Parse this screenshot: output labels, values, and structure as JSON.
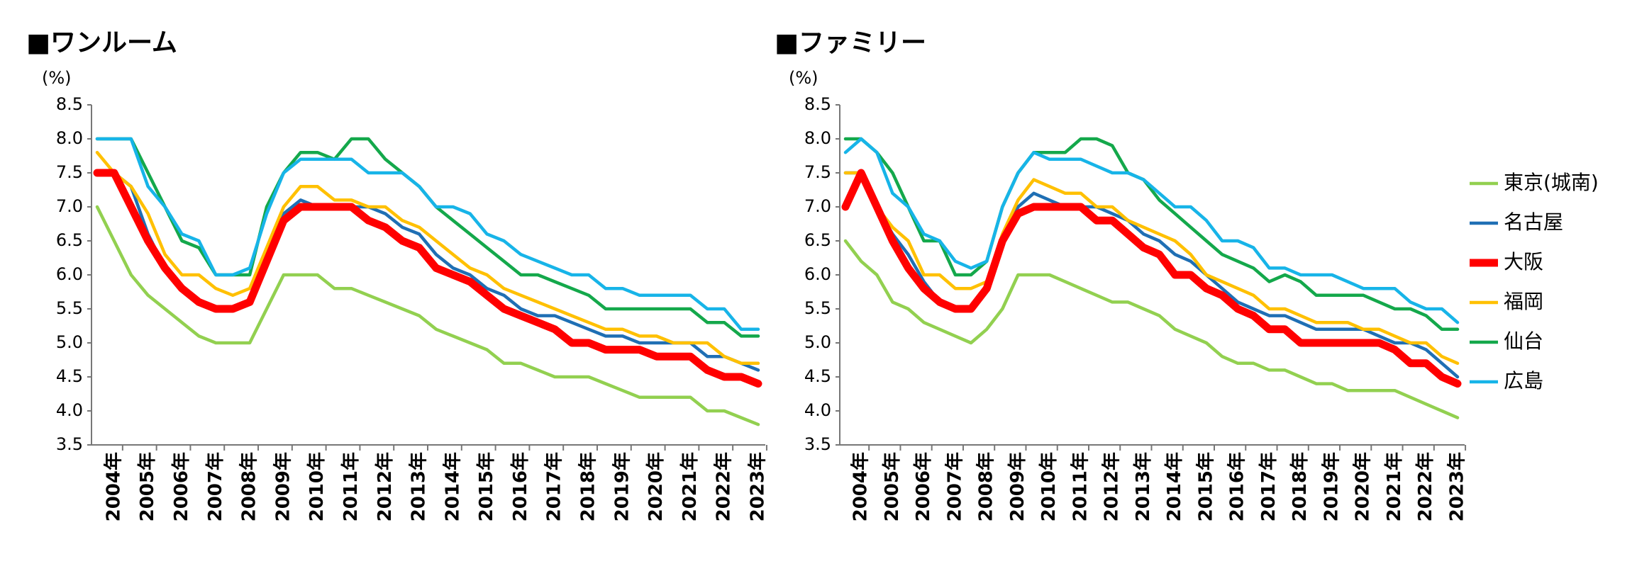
{
  "chart_data": [
    {
      "type": "line",
      "title": "■ワンルーム",
      "y_unit": "(%)",
      "categories": [
        null,
        "2004年",
        null,
        "2005年",
        null,
        "2006年",
        null,
        "2007年",
        null,
        "2008年",
        null,
        "2009年",
        null,
        "2010年",
        null,
        "2011年",
        null,
        "2012年",
        null,
        "2013年",
        null,
        "2014年",
        null,
        "2015年",
        null,
        "2016年",
        null,
        "2017年",
        null,
        "2018年",
        null,
        "2019年",
        null,
        "2020年",
        null,
        "2021年",
        null,
        "2022年",
        null,
        "2023年"
      ],
      "ylim": [
        3.5,
        8.5
      ],
      "yticks": [
        {
          "value": 3.5,
          "label": "3.5"
        },
        {
          "value": 4,
          "label": "4.0"
        },
        {
          "value": 4.5,
          "label": "4.5"
        },
        {
          "value": 5,
          "label": "5.0"
        },
        {
          "value": 5.5,
          "label": "5.5"
        },
        {
          "value": 6,
          "label": "6.0"
        },
        {
          "value": 6.5,
          "label": "6.5"
        },
        {
          "value": 7,
          "label": "7.0"
        },
        {
          "value": 7.5,
          "label": "7.5"
        },
        {
          "value": 8,
          "label": "8.0"
        },
        {
          "value": 8.5,
          "label": "8.5"
        }
      ],
      "grid": false,
      "legend": false,
      "series": [
        {
          "color": "#92d050",
          "values": [
            7.0,
            6.5,
            6.0,
            5.7,
            5.5,
            5.3,
            5.1,
            5.0,
            5.0,
            5.0,
            5.5,
            6.0,
            6.0,
            6.0,
            5.8,
            5.8,
            5.7,
            5.6,
            5.5,
            5.4,
            5.2,
            5.1,
            5.0,
            4.9,
            4.7,
            4.7,
            4.6,
            4.5,
            4.5,
            4.5,
            4.4,
            4.3,
            4.2,
            4.2,
            4.2,
            4.2,
            4.0,
            4.0,
            3.9,
            3.8
          ]
        },
        {
          "color": "#1f6fb4",
          "values": [
            7.5,
            7.5,
            7.3,
            6.6,
            6.1,
            5.8,
            5.6,
            5.5,
            5.5,
            5.6,
            6.3,
            6.9,
            7.1,
            7.0,
            7.0,
            7.0,
            7.0,
            6.9,
            6.7,
            6.6,
            6.3,
            6.1,
            6.0,
            5.8,
            5.7,
            5.5,
            5.4,
            5.4,
            5.3,
            5.2,
            5.1,
            5.1,
            5.0,
            5.0,
            5.0,
            5.0,
            4.8,
            4.8,
            4.7,
            4.6
          ]
        },
        {
          "color": "#ff0000",
          "highlight": true,
          "values": [
            7.5,
            7.5,
            7.0,
            6.5,
            6.1,
            5.8,
            5.6,
            5.5,
            5.5,
            5.6,
            6.2,
            6.8,
            7.0,
            7.0,
            7.0,
            7.0,
            6.8,
            6.7,
            6.5,
            6.4,
            6.1,
            6.0,
            5.9,
            5.7,
            5.5,
            5.4,
            5.3,
            5.2,
            5.0,
            5.0,
            4.9,
            4.9,
            4.9,
            4.8,
            4.8,
            4.8,
            4.6,
            4.5,
            4.5,
            4.4
          ]
        },
        {
          "color": "#ffc000",
          "values": [
            7.8,
            7.5,
            7.3,
            6.9,
            6.3,
            6.0,
            6.0,
            5.8,
            5.7,
            5.8,
            6.4,
            7.0,
            7.3,
            7.3,
            7.1,
            7.1,
            7.0,
            7.0,
            6.8,
            6.7,
            6.5,
            6.3,
            6.1,
            6.0,
            5.8,
            5.7,
            5.6,
            5.5,
            5.4,
            5.3,
            5.2,
            5.2,
            5.1,
            5.1,
            5.0,
            5.0,
            5.0,
            4.8,
            4.7,
            4.7
          ]
        },
        {
          "color": "#14a84b",
          "values": [
            8.0,
            8.0,
            8.0,
            7.5,
            7.0,
            6.5,
            6.4,
            6.0,
            6.0,
            6.0,
            7.0,
            7.5,
            7.8,
            7.8,
            7.7,
            8.0,
            8.0,
            7.7,
            7.5,
            7.3,
            7.0,
            6.8,
            6.6,
            6.4,
            6.2,
            6.0,
            6.0,
            5.9,
            5.8,
            5.7,
            5.5,
            5.5,
            5.5,
            5.5,
            5.5,
            5.5,
            5.3,
            5.3,
            5.1,
            5.1
          ]
        },
        {
          "color": "#17b4e8",
          "values": [
            8.0,
            8.0,
            8.0,
            7.3,
            7.0,
            6.6,
            6.5,
            6.0,
            6.0,
            6.1,
            6.9,
            7.5,
            7.7,
            7.7,
            7.7,
            7.7,
            7.5,
            7.5,
            7.5,
            7.3,
            7.0,
            7.0,
            6.9,
            6.6,
            6.5,
            6.3,
            6.2,
            6.1,
            6.0,
            6.0,
            5.8,
            5.8,
            5.7,
            5.7,
            5.7,
            5.7,
            5.5,
            5.5,
            5.2,
            5.2
          ]
        }
      ]
    },
    {
      "type": "line",
      "title": "■ファミリー",
      "y_unit": "(%)",
      "categories": [
        null,
        "2004年",
        null,
        "2005年",
        null,
        "2006年",
        null,
        "2007年",
        null,
        "2008年",
        null,
        "2009年",
        null,
        "2010年",
        null,
        "2011年",
        null,
        "2012年",
        null,
        "2013年",
        null,
        "2014年",
        null,
        "2015年",
        null,
        "2016年",
        null,
        "2017年",
        null,
        "2018年",
        null,
        "2019年",
        null,
        "2020年",
        null,
        "2021年",
        null,
        "2022年",
        null,
        "2023年"
      ],
      "ylim": [
        3.5,
        8.5
      ],
      "yticks": [
        {
          "value": 3.5,
          "label": "3.5"
        },
        {
          "value": 4,
          "label": "4.0"
        },
        {
          "value": 4.5,
          "label": "4.5"
        },
        {
          "value": 5,
          "label": "5.0"
        },
        {
          "value": 5.5,
          "label": "5.5"
        },
        {
          "value": 6,
          "label": "6.0"
        },
        {
          "value": 6.5,
          "label": "6.5"
        },
        {
          "value": 7,
          "label": "7.0"
        },
        {
          "value": 7.5,
          "label": "7.5"
        },
        {
          "value": 8,
          "label": "8.0"
        },
        {
          "value": 8.5,
          "label": "8.5"
        }
      ],
      "grid": false,
      "legend": true,
      "series": [
        {
          "name": "東京(城南)",
          "color": "#92d050",
          "values": [
            6.5,
            6.2,
            6.0,
            5.6,
            5.5,
            5.3,
            5.2,
            5.1,
            5.0,
            5.2,
            5.5,
            6.0,
            6.0,
            6.0,
            5.9,
            5.8,
            5.7,
            5.6,
            5.6,
            5.5,
            5.4,
            5.2,
            5.1,
            5.0,
            4.8,
            4.7,
            4.7,
            4.6,
            4.6,
            4.5,
            4.4,
            4.4,
            4.3,
            4.3,
            4.3,
            4.3,
            4.2,
            4.1,
            4.0,
            3.9
          ]
        },
        {
          "name": "名古屋",
          "color": "#1f6fb4",
          "values": [
            7.5,
            7.5,
            7.0,
            6.6,
            6.3,
            5.9,
            5.6,
            5.5,
            5.5,
            5.8,
            6.5,
            7.0,
            7.2,
            7.1,
            7.0,
            7.0,
            7.0,
            6.9,
            6.8,
            6.6,
            6.5,
            6.3,
            6.2,
            6.0,
            5.8,
            5.6,
            5.5,
            5.4,
            5.4,
            5.3,
            5.2,
            5.2,
            5.2,
            5.2,
            5.1,
            5.0,
            5.0,
            4.9,
            4.7,
            4.5
          ]
        },
        {
          "name": "大阪",
          "color": "#ff0000",
          "highlight": true,
          "values": [
            7.0,
            7.5,
            7.0,
            6.5,
            6.1,
            5.8,
            5.6,
            5.5,
            5.5,
            5.8,
            6.5,
            6.9,
            7.0,
            7.0,
            7.0,
            7.0,
            6.8,
            6.8,
            6.6,
            6.4,
            6.3,
            6.0,
            6.0,
            5.8,
            5.7,
            5.5,
            5.4,
            5.2,
            5.2,
            5.0,
            5.0,
            5.0,
            5.0,
            5.0,
            5.0,
            4.9,
            4.7,
            4.7,
            4.5,
            4.4
          ]
        },
        {
          "name": "福岡",
          "color": "#ffc000",
          "values": [
            7.5,
            7.5,
            7.0,
            6.7,
            6.5,
            6.0,
            6.0,
            5.8,
            5.8,
            5.9,
            6.6,
            7.1,
            7.4,
            7.3,
            7.2,
            7.2,
            7.0,
            7.0,
            6.8,
            6.7,
            6.6,
            6.5,
            6.3,
            6.0,
            5.9,
            5.8,
            5.7,
            5.5,
            5.5,
            5.4,
            5.3,
            5.3,
            5.3,
            5.2,
            5.2,
            5.1,
            5.0,
            5.0,
            4.8,
            4.7
          ]
        },
        {
          "name": "仙台",
          "color": "#14a84b",
          "values": [
            8.0,
            8.0,
            7.8,
            7.5,
            7.0,
            6.5,
            6.5,
            6.0,
            6.0,
            6.2,
            7.0,
            7.5,
            7.8,
            7.8,
            7.8,
            8.0,
            8.0,
            7.9,
            7.5,
            7.4,
            7.1,
            6.9,
            6.7,
            6.5,
            6.3,
            6.2,
            6.1,
            5.9,
            6.0,
            5.9,
            5.7,
            5.7,
            5.7,
            5.7,
            5.6,
            5.5,
            5.5,
            5.4,
            5.2,
            5.2
          ]
        },
        {
          "name": "広島",
          "color": "#17b4e8",
          "values": [
            7.8,
            8.0,
            7.8,
            7.2,
            7.0,
            6.6,
            6.5,
            6.2,
            6.1,
            6.2,
            7.0,
            7.5,
            7.8,
            7.7,
            7.7,
            7.7,
            7.6,
            7.5,
            7.5,
            7.4,
            7.2,
            7.0,
            7.0,
            6.8,
            6.5,
            6.5,
            6.4,
            6.1,
            6.1,
            6.0,
            6.0,
            6.0,
            5.9,
            5.8,
            5.8,
            5.8,
            5.6,
            5.5,
            5.5,
            5.3
          ]
        }
      ]
    }
  ]
}
